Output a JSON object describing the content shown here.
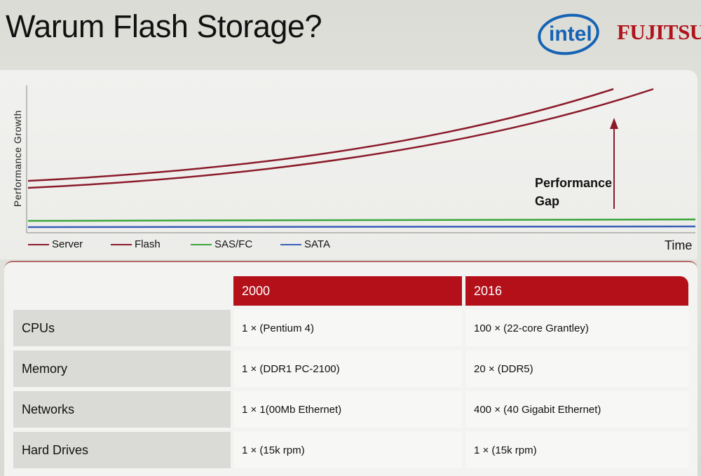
{
  "slide": {
    "title": "Warum Flash Storage?",
    "logos": {
      "intel": "intel",
      "fujitsu": "FUJITSU"
    }
  },
  "chart": {
    "ylabel": "Performance Growth",
    "xlabel": "Time",
    "annotation": "Performance Gap",
    "annotation_lines": [
      "Performance",
      "Gap"
    ],
    "legend": [
      {
        "name": "Server",
        "color": "#8b1a2a"
      },
      {
        "name": "Flash",
        "color": "#8b1a2a"
      },
      {
        "name": "SAS/FC",
        "color": "#3aa63a"
      },
      {
        "name": "SATA",
        "color": "#3a5fb8"
      }
    ]
  },
  "table": {
    "headers": [
      "2000",
      "2016"
    ],
    "rows": [
      {
        "label": "CPUs",
        "y2000": "1 × (Pentium 4)",
        "y2016": "100 × (22-core Grantley)"
      },
      {
        "label": "Memory",
        "y2000": "1 × (DDR1 PC-2100)",
        "y2016": "20 × (DDR5)"
      },
      {
        "label": "Networks",
        "y2000": "1 × 1(00Mb Ethernet)",
        "y2016": "400 × (40 Gigabit Ethernet)"
      },
      {
        "label": "Hard Drives",
        "y2000": "1 × (15k rpm)",
        "y2016": "1 × (15k rpm)"
      }
    ]
  },
  "chart_data": {
    "type": "line",
    "xlabel": "Time",
    "ylabel": "Performance Growth",
    "series": [
      {
        "name": "Server",
        "color": "#8b1a2a"
      },
      {
        "name": "Flash",
        "color": "#8b1a2a"
      },
      {
        "name": "SAS/FC",
        "color": "#3aa63a"
      },
      {
        "name": "SATA",
        "color": "#3a5fb8"
      }
    ],
    "annotation": "Performance Gap",
    "legend_position": "bottom"
  }
}
